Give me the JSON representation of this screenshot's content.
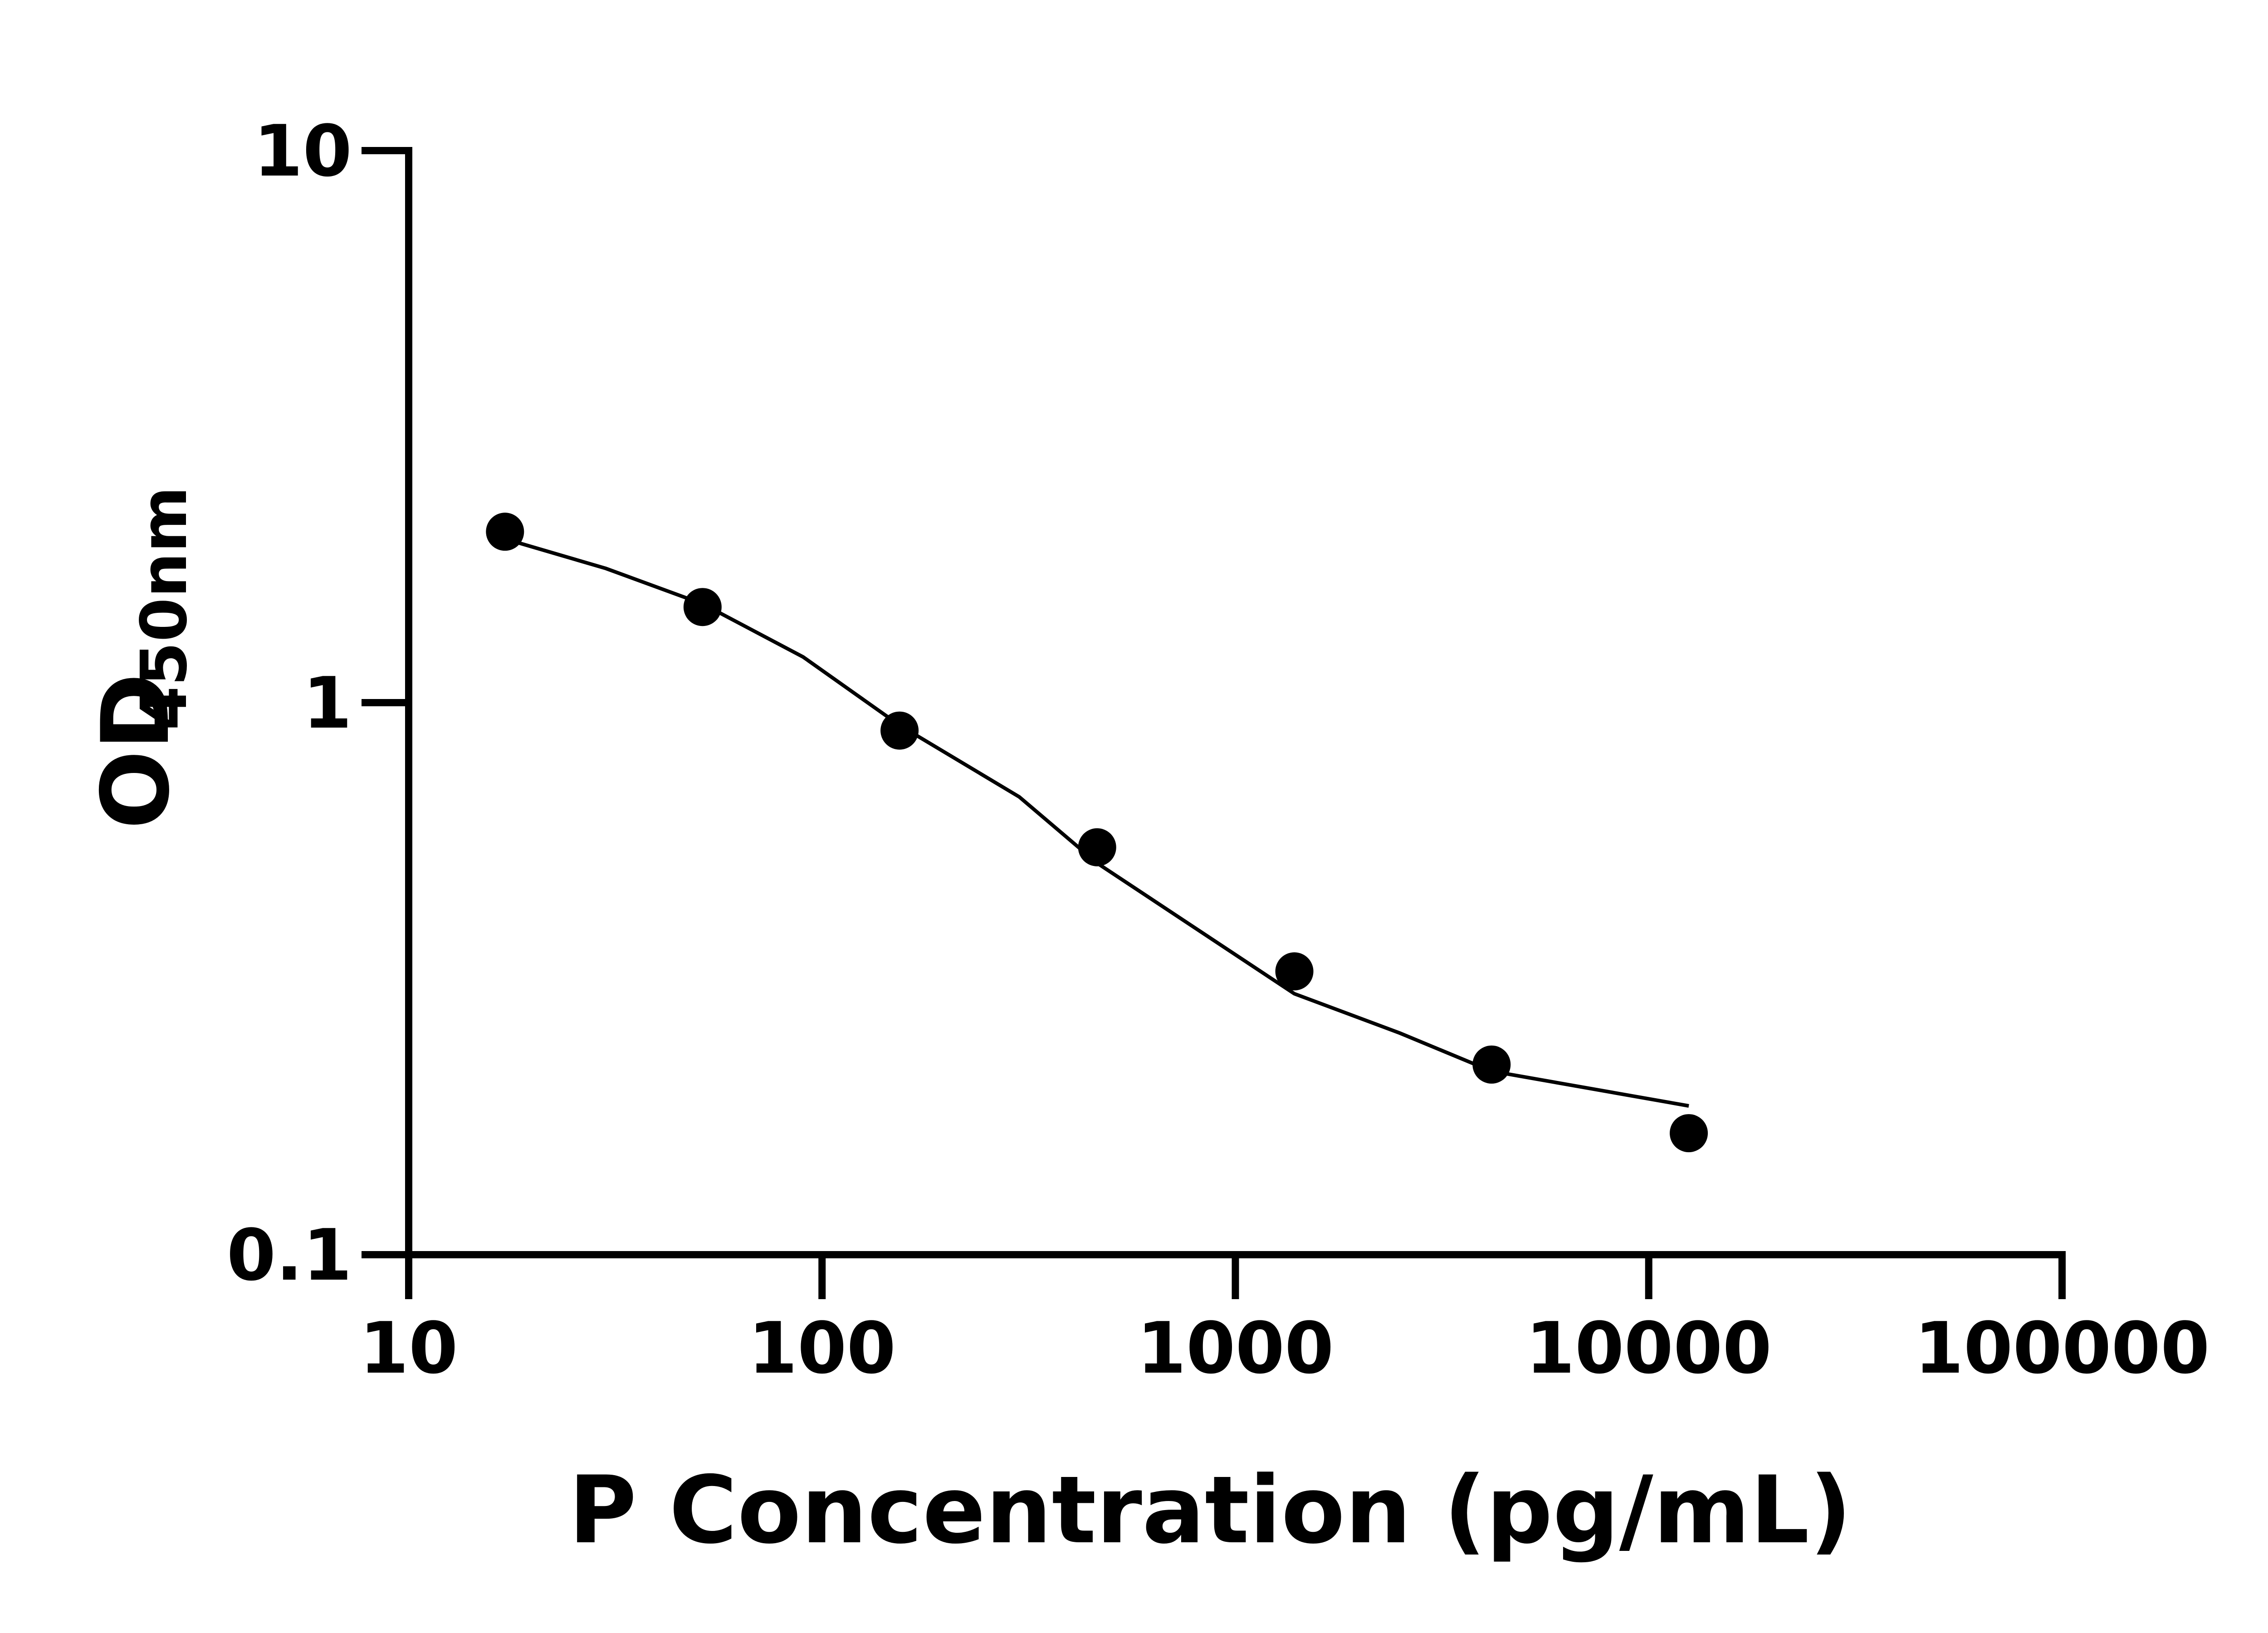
{
  "chart_data": {
    "type": "scatter",
    "xlabel": "P Concentration  (pg/mL)",
    "ylabel": "OD",
    "ylabel_subscript": "450nm",
    "xscale": "log",
    "yscale": "log",
    "xlim": [
      10,
      100000
    ],
    "ylim": [
      0.1,
      10
    ],
    "xticks": [
      10,
      100,
      1000,
      10000,
      100000
    ],
    "yticks": [
      0.1,
      1,
      10
    ],
    "series": [
      {
        "kind": "points",
        "color": "#000000",
        "x": [
          17.1,
          51.4,
          154,
          463,
          1389,
          4167,
          12500
        ],
        "values": [
          2.04,
          1.49,
          0.89,
          0.547,
          0.326,
          0.221,
          0.166
        ]
      },
      {
        "kind": "fit",
        "color": "#000000",
        "x": [
          17.1,
          30,
          51.4,
          90,
          154,
          300,
          463,
          1389,
          2500,
          4167,
          12500
        ],
        "values": [
          1.98,
          1.75,
          1.51,
          1.21,
          0.91,
          0.675,
          0.512,
          0.297,
          0.252,
          0.215,
          0.186
        ]
      }
    ]
  }
}
